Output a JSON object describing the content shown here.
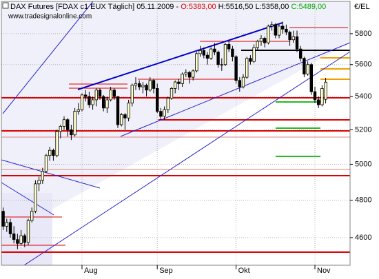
{
  "chart_data": {
    "type": "candlestick",
    "title": "DAX Futures [FDAX c1 EUX  Täglich] 05.11.2009 -",
    "ohlc_labels": [
      "O:5383,00",
      "H:5516,50",
      "L:5358,00",
      "C:5489,00"
    ],
    "watermark": "www.tradesignalonline.com",
    "unit": "€/EL",
    "categories": [
      null,
      null,
      null,
      null,
      null,
      null,
      null,
      null,
      null,
      null,
      null,
      null,
      null,
      null,
      null,
      null,
      null,
      null,
      null,
      null,
      null,
      null,
      "Aug",
      null,
      null,
      null,
      null,
      null,
      null,
      null,
      null,
      null,
      null,
      null,
      null,
      null,
      null,
      null,
      null,
      null,
      null,
      null,
      null,
      "Sep",
      null,
      null,
      null,
      null,
      null,
      null,
      null,
      null,
      null,
      null,
      null,
      null,
      null,
      null,
      null,
      null,
      null,
      null,
      null,
      null,
      null,
      "Okt",
      null,
      null,
      null,
      null,
      null,
      null,
      null,
      null,
      null,
      null,
      null,
      null,
      null,
      null,
      null,
      null,
      null,
      null,
      null,
      null,
      null,
      "Nov",
      null,
      null,
      null
    ],
    "open": [
      4740,
      4660,
      4680,
      4620,
      4590,
      4570,
      4610,
      4575,
      4690,
      4740,
      4890,
      4910,
      4960,
      5050,
      5080,
      5050,
      5190,
      5220,
      5260,
      5200,
      5170,
      5310,
      5320,
      5410,
      5400,
      5350,
      5380,
      5440,
      5400,
      5330,
      5380,
      5440,
      5400,
      5230,
      5290,
      5270,
      5360,
      5470,
      5480,
      5460,
      5470,
      5440,
      5500,
      5450,
      5310,
      5280,
      5320,
      5390,
      5450,
      5490,
      5480,
      5540,
      5550,
      5520,
      5560,
      5670,
      5690,
      5660,
      5640,
      5700,
      5680,
      5600,
      5600,
      5730,
      5700,
      5650,
      5500,
      5460,
      5520,
      5640,
      5620,
      5710,
      5750,
      5770,
      5740,
      5850,
      5860,
      5790,
      5850,
      5830,
      5810,
      5760,
      5780,
      5700,
      5640,
      5540,
      5600,
      5430,
      5380,
      5350,
      5383
    ],
    "high": [
      4760,
      4700,
      4700,
      4660,
      4620,
      4640,
      4620,
      4700,
      4760,
      4910,
      4930,
      4980,
      5060,
      5100,
      5090,
      5200,
      5230,
      5280,
      5270,
      5230,
      5330,
      5360,
      5420,
      5440,
      5430,
      5400,
      5450,
      5450,
      5410,
      5400,
      5460,
      5450,
      5400,
      5300,
      5300,
      5380,
      5480,
      5520,
      5500,
      5490,
      5480,
      5520,
      5510,
      5480,
      5330,
      5340,
      5400,
      5460,
      5500,
      5510,
      5550,
      5570,
      5560,
      5570,
      5680,
      5720,
      5710,
      5680,
      5710,
      5740,
      5690,
      5640,
      5740,
      5750,
      5720,
      5660,
      5520,
      5540,
      5650,
      5660,
      5730,
      5760,
      5790,
      5780,
      5860,
      5880,
      5870,
      5860,
      5880,
      5860,
      5820,
      5820,
      5820,
      5720,
      5650,
      5620,
      5610,
      5460,
      5400,
      5470,
      5516.5
    ],
    "low": [
      4640,
      4630,
      4600,
      4570,
      4540,
      4560,
      4550,
      4560,
      4680,
      4730,
      4850,
      4890,
      4950,
      5020,
      5020,
      5040,
      5150,
      5200,
      5160,
      5140,
      5160,
      5290,
      5310,
      5370,
      5330,
      5320,
      5340,
      5380,
      5310,
      5300,
      5370,
      5380,
      5210,
      5220,
      5200,
      5250,
      5340,
      5440,
      5440,
      5420,
      5400,
      5430,
      5420,
      5300,
      5260,
      5260,
      5300,
      5380,
      5420,
      5440,
      5460,
      5520,
      5480,
      5500,
      5550,
      5650,
      5640,
      5600,
      5630,
      5660,
      5580,
      5560,
      5590,
      5680,
      5620,
      5480,
      5430,
      5450,
      5510,
      5600,
      5610,
      5690,
      5720,
      5710,
      5730,
      5820,
      5770,
      5770,
      5800,
      5790,
      5720,
      5740,
      5680,
      5620,
      5520,
      5530,
      5410,
      5360,
      5330,
      5340,
      5358
    ],
    "close": [
      4660,
      4680,
      4620,
      4590,
      4570,
      4610,
      4575,
      4690,
      4740,
      4890,
      4910,
      4960,
      5050,
      5080,
      5050,
      5190,
      5220,
      5260,
      5200,
      5170,
      5310,
      5320,
      5410,
      5400,
      5350,
      5380,
      5440,
      5400,
      5330,
      5380,
      5440,
      5400,
      5230,
      5290,
      5270,
      5360,
      5470,
      5480,
      5460,
      5470,
      5440,
      5500,
      5450,
      5310,
      5280,
      5320,
      5390,
      5450,
      5490,
      5480,
      5540,
      5550,
      5520,
      5560,
      5670,
      5690,
      5660,
      5640,
      5700,
      5680,
      5600,
      5600,
      5730,
      5700,
      5650,
      5500,
      5460,
      5520,
      5640,
      5620,
      5710,
      5750,
      5770,
      5740,
      5850,
      5860,
      5790,
      5850,
      5830,
      5810,
      5760,
      5780,
      5700,
      5640,
      5540,
      5600,
      5430,
      5380,
      5350,
      5450,
      5489
    ],
    "up_color": "#ffffcc",
    "down_color": "#000000",
    "ylim": [
      4458,
      6017
    ],
    "yticks": [
      4600,
      4800,
      5000,
      5200,
      5400,
      5600,
      5800
    ],
    "log_scale": true,
    "grid": true
  }
}
